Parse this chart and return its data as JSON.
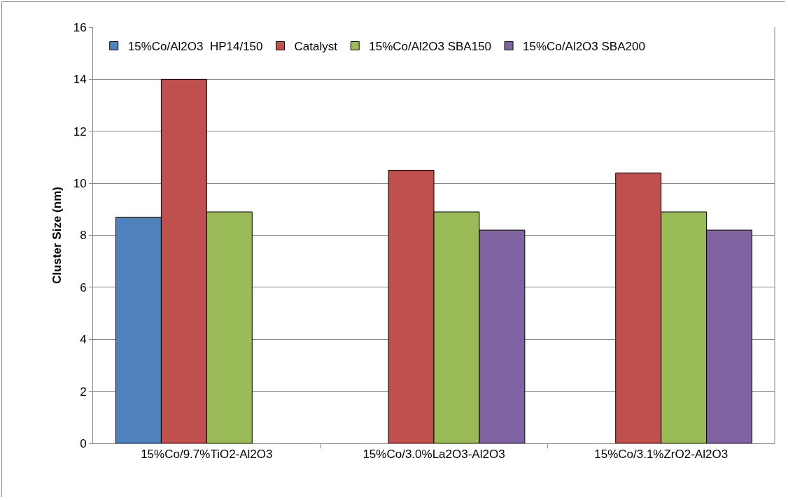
{
  "chart_data": {
    "type": "bar",
    "ylabel": "Cluster Size (nm)",
    "categories": [
      "15%Co/9.7%TiO2-Al2O3",
      "15%Co/3.0%La2O3-Al2O3",
      "15%Co/3.1%ZrO2-Al2O3"
    ],
    "series": [
      {
        "name": "15%Co/Al2O3  HP14/150",
        "color": "#4f81bd",
        "values": [
          8.7,
          null,
          null
        ]
      },
      {
        "name": "Catalyst",
        "color": "#c0504d",
        "values": [
          14,
          10.5,
          10.4
        ]
      },
      {
        "name": "15%Co/Al2O3 SBA150",
        "color": "#9bbb59",
        "values": [
          8.9,
          8.9,
          8.9
        ]
      },
      {
        "name": "15%Co/Al2O3 SBA200",
        "color": "#8064a2",
        "values": [
          null,
          8.2,
          8.2
        ]
      }
    ],
    "ylim": [
      0,
      16
    ],
    "yticks": [
      0,
      2,
      4,
      6,
      8,
      10,
      12,
      14,
      16
    ],
    "grid": "y",
    "legend": "top"
  }
}
